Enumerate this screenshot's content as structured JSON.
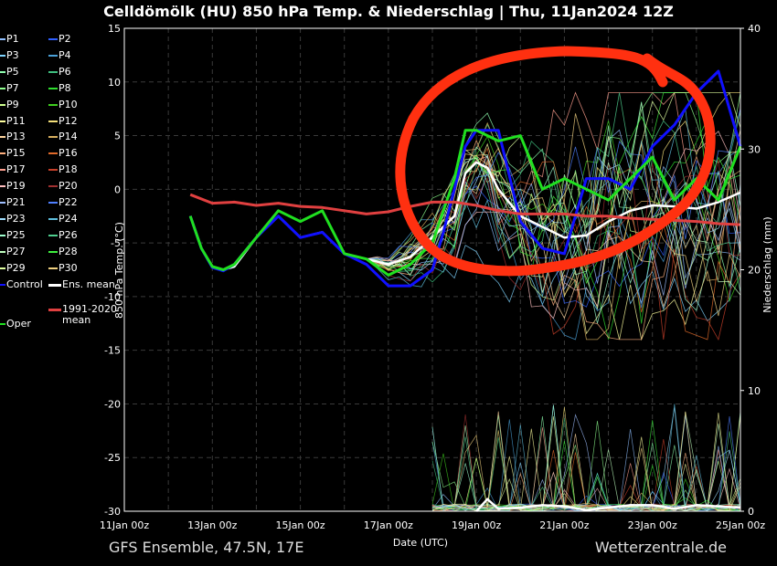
{
  "title": "Celldömölk  (HU)  850 hPa Temp. & Niederschlag | Thu, 11Jan2024 12Z",
  "footer_left": "GFS Ensemble, 47.5N, 17E",
  "footer_right": "Wetterzentrale.de",
  "legend": {
    "members": [
      {
        "name": "P1",
        "color": "#8fbfff"
      },
      {
        "name": "P2",
        "color": "#2f5fff"
      },
      {
        "name": "P3",
        "color": "#7fd4ff"
      },
      {
        "name": "P4",
        "color": "#4aa0d8"
      },
      {
        "name": "P5",
        "color": "#8fffb0"
      },
      {
        "name": "P6",
        "color": "#3fbf7f"
      },
      {
        "name": "P7",
        "color": "#8fff8f"
      },
      {
        "name": "P8",
        "color": "#2fdf2f"
      },
      {
        "name": "P9",
        "color": "#cfff8f"
      },
      {
        "name": "P10",
        "color": "#3fcf1f"
      },
      {
        "name": "P11",
        "color": "#ffff9f"
      },
      {
        "name": "P12",
        "color": "#f4e07a"
      },
      {
        "name": "P13",
        "color": "#ffd59f"
      },
      {
        "name": "P14",
        "color": "#d8b060"
      },
      {
        "name": "P15",
        "color": "#ffb07f"
      },
      {
        "name": "P16",
        "color": "#e06a2a"
      },
      {
        "name": "P17",
        "color": "#ff9f8f"
      },
      {
        "name": "P18",
        "color": "#c8402a"
      },
      {
        "name": "P19",
        "color": "#ffbfbf"
      },
      {
        "name": "P20",
        "color": "#a03030"
      },
      {
        "name": "P21",
        "color": "#9fbfff"
      },
      {
        "name": "P22",
        "color": "#4f7fff"
      },
      {
        "name": "P23",
        "color": "#9fdfff"
      },
      {
        "name": "P24",
        "color": "#5fbfdf"
      },
      {
        "name": "P25",
        "color": "#9fffcf"
      },
      {
        "name": "P26",
        "color": "#4fcf8f"
      },
      {
        "name": "P27",
        "color": "#bfffbf"
      },
      {
        "name": "P28",
        "color": "#3fef3f"
      },
      {
        "name": "P29",
        "color": "#dfff9f"
      },
      {
        "name": "P30",
        "color": "#f0d080"
      }
    ],
    "control": {
      "name": "Control",
      "color": "#1010ff"
    },
    "ens_mean": {
      "name": "Ens. mean",
      "color": "#ffffff"
    },
    "climate": {
      "name": "1991-2020 mean",
      "color": "#e04040"
    },
    "oper": {
      "name": "Oper",
      "color": "#20e020"
    }
  },
  "chart_data": {
    "type": "line",
    "xlabel": "Date (UTC)",
    "ylabel": "850 hPa Temp. (°C)",
    "y2label": "Niederschlag (mm)",
    "x_ticks": [
      "11Jan 00z",
      "13Jan 00z",
      "15Jan 00z",
      "17Jan 00z",
      "19Jan 00z",
      "21Jan 00z",
      "23Jan 00z",
      "25Jan 00z"
    ],
    "x_range_days": [
      0,
      14
    ],
    "ylim": [
      -30,
      15
    ],
    "y_ticks": [
      15,
      10,
      5,
      0,
      -5,
      -10,
      -15,
      -20,
      -25,
      -30
    ],
    "y2lim": [
      0,
      40
    ],
    "y2_ticks": [
      40,
      30,
      20,
      10,
      0
    ],
    "grid": true,
    "series": [
      {
        "name": "Ens. mean",
        "color": "#ffffff",
        "x_days": [
          1.5,
          1.75,
          2,
          2.25,
          2.5,
          3,
          3.5,
          4,
          4.5,
          5,
          5.5,
          6,
          6.5,
          7,
          7.5,
          7.75,
          8,
          8.25,
          8.5,
          9,
          9.5,
          10,
          10.5,
          11,
          11.5,
          12,
          12.5,
          13,
          13.5,
          14
        ],
        "values": [
          -2.5,
          -5.5,
          -7.2,
          -7.5,
          -7.2,
          -4.5,
          -2.5,
          -4.5,
          -4,
          -6,
          -6.5,
          -7,
          -6.3,
          -4.5,
          -2.5,
          1.5,
          2.5,
          2,
          0,
          -2.5,
          -3.5,
          -4.5,
          -4.3,
          -3,
          -2,
          -1.5,
          -1.6,
          -1.8,
          -1.2,
          -0.3
        ]
      },
      {
        "name": "Control",
        "color": "#1010ff",
        "x_days": [
          1.5,
          1.75,
          2,
          2.25,
          2.5,
          3,
          3.5,
          4,
          4.5,
          5,
          5.5,
          6,
          6.5,
          7,
          7.25,
          7.5,
          7.75,
          8,
          8.5,
          9,
          9.5,
          10,
          10.5,
          11,
          11.5,
          12,
          12.5,
          13,
          13.5,
          14
        ],
        "values": [
          -2.5,
          -5.5,
          -7.3,
          -7.6,
          -7,
          -4.5,
          -2.5,
          -4.5,
          -4,
          -6,
          -7,
          -9,
          -9,
          -7.5,
          -4,
          0,
          4,
          5.5,
          5.5,
          -3,
          -5.5,
          -6,
          1,
          1,
          0,
          4,
          6,
          9,
          11,
          4
        ]
      },
      {
        "name": "Oper",
        "color": "#20e020",
        "x_days": [
          1.5,
          1.75,
          2,
          2.25,
          2.5,
          3,
          3.5,
          4,
          4.5,
          5,
          5.5,
          6,
          6.5,
          7,
          7.25,
          7.5,
          7.75,
          8,
          8.5,
          9,
          9.5,
          10,
          10.5,
          11,
          11.5,
          12,
          12.5,
          13,
          13.5,
          14
        ],
        "values": [
          -2.5,
          -5.5,
          -7.2,
          -7.5,
          -7,
          -4.5,
          -2,
          -3,
          -2,
          -6,
          -6.5,
          -8,
          -7,
          -5,
          -2,
          1,
          5.5,
          5.5,
          4.5,
          5,
          0,
          1,
          0,
          -1,
          1,
          3,
          -1,
          1,
          -1,
          4
        ]
      },
      {
        "name": "1991-2020 mean",
        "color": "#e04040",
        "x_days": [
          1.5,
          2,
          2.5,
          3,
          3.5,
          4,
          4.5,
          5,
          5.5,
          6,
          6.5,
          7,
          7.5,
          8,
          8.5,
          9,
          9.5,
          10,
          10.5,
          11,
          11.5,
          12,
          12.5,
          13,
          13.5,
          14
        ],
        "values": [
          -0.5,
          -1.3,
          -1.2,
          -1.5,
          -1.3,
          -1.6,
          -1.7,
          -2,
          -2.3,
          -2.1,
          -1.6,
          -1.2,
          -1.2,
          -1.5,
          -2,
          -2.3,
          -2.3,
          -2.3,
          -2.5,
          -2.5,
          -2.7,
          -2.8,
          -2.9,
          -3,
          -3.2,
          -3.3
        ]
      }
    ],
    "precipitation_mean": {
      "x_days": [
        8,
        8.25,
        8.5,
        9,
        9.5,
        10,
        10.5,
        11,
        11.5,
        12,
        12.5,
        13,
        13.5,
        14
      ],
      "values": [
        0,
        1,
        0.2,
        0.3,
        0.5,
        0.4,
        0.1,
        0.3,
        0.5,
        0.5,
        0.2,
        0.5,
        0.4,
        0.3
      ]
    }
  }
}
